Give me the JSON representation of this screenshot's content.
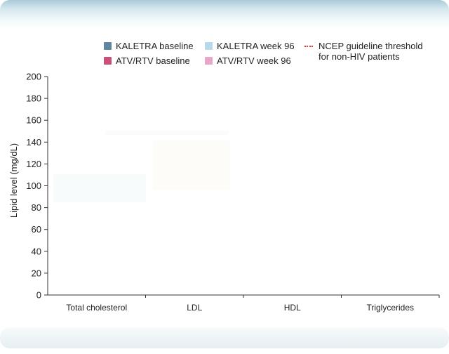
{
  "chart_data": {
    "type": "bar",
    "title": "",
    "xlabel": "",
    "ylabel": "Lipid level (mg/dL)",
    "ylim": [
      0,
      200
    ],
    "yticks": [
      0,
      20,
      40,
      60,
      80,
      100,
      120,
      140,
      160,
      180,
      200
    ],
    "categories": [
      "Total cholesterol",
      "LDL",
      "HDL",
      "Triglycerides"
    ],
    "series": [
      {
        "name": "KALETRA baseline",
        "color": "#5f86a0"
      },
      {
        "name": "KALETRA week 96",
        "color": "#b8d9ec"
      },
      {
        "name": "ATV/RTV baseline",
        "color": "#c8507a"
      },
      {
        "name": "ATV/RTV week 96",
        "color": "#e9a7c6"
      }
    ],
    "threshold": {
      "name": "NCEP guideline threshold for non-HIV patients",
      "color": "#e23b3b"
    },
    "grid": false,
    "legend_position": "top"
  },
  "legend": {
    "items": [
      {
        "label": "KALETRA baseline",
        "color": "#5f86a0"
      },
      {
        "label": "KALETRA week 96",
        "color": "#b8d9ec"
      },
      {
        "label": "ATV/RTV baseline",
        "color": "#c8507a"
      },
      {
        "label": "ATV/RTV week 96",
        "color": "#e9a7c6"
      }
    ],
    "threshold_line1": "NCEP guideline threshold",
    "threshold_line2": "for non-HIV patients",
    "threshold_color": "#e23b3b"
  }
}
